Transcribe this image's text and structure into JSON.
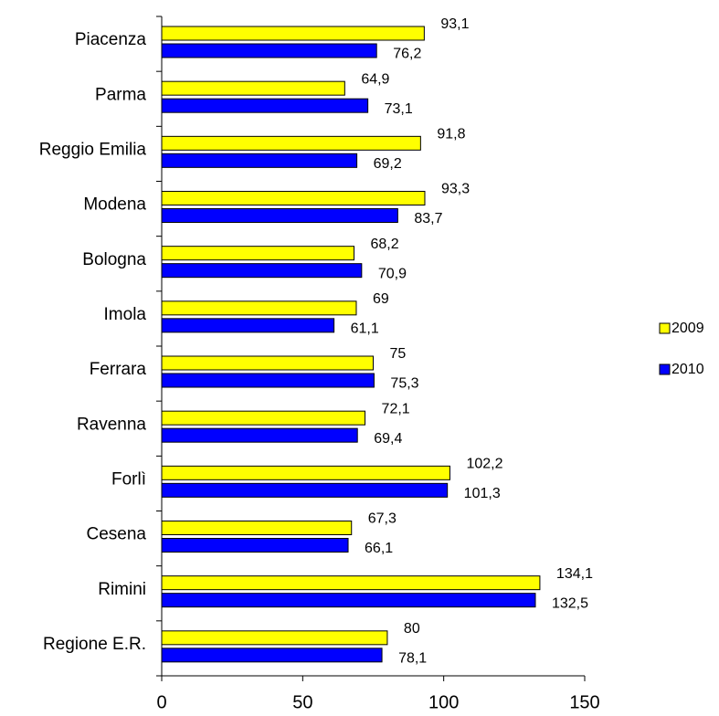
{
  "chart_data": {
    "type": "bar",
    "orientation": "horizontal",
    "categories": [
      "Piacenza",
      "Parma",
      "Reggio Emilia",
      "Modena",
      "Bologna",
      "Imola",
      "Ferrara",
      "Ravenna",
      "Forlì",
      "Cesena",
      "Rimini",
      "Regione E.R."
    ],
    "series": [
      {
        "name": "2009",
        "color": "#ffff00",
        "values": [
          93.1,
          64.9,
          91.8,
          93.3,
          68.2,
          69,
          75,
          72.1,
          102.2,
          67.3,
          134.1,
          80
        ],
        "value_labels": [
          "93,1",
          "64,9",
          "91,8",
          "93,3",
          "68,2",
          "69",
          "75",
          "72,1",
          "102,2",
          "67,3",
          "134,1",
          "80"
        ]
      },
      {
        "name": "2010",
        "color": "#0000ff",
        "values": [
          76.2,
          73.1,
          69.2,
          83.7,
          70.9,
          61.1,
          75.3,
          69.4,
          101.3,
          66.1,
          132.5,
          78.1
        ],
        "value_labels": [
          "76,2",
          "73,1",
          "69,2",
          "83,7",
          "70,9",
          "61,1",
          "75,3",
          "69,4",
          "101,3",
          "66,1",
          "132,5",
          "78,1"
        ]
      }
    ],
    "xlim": [
      0,
      150
    ],
    "xticks": [
      0,
      50,
      100,
      150
    ],
    "legend": "right"
  }
}
